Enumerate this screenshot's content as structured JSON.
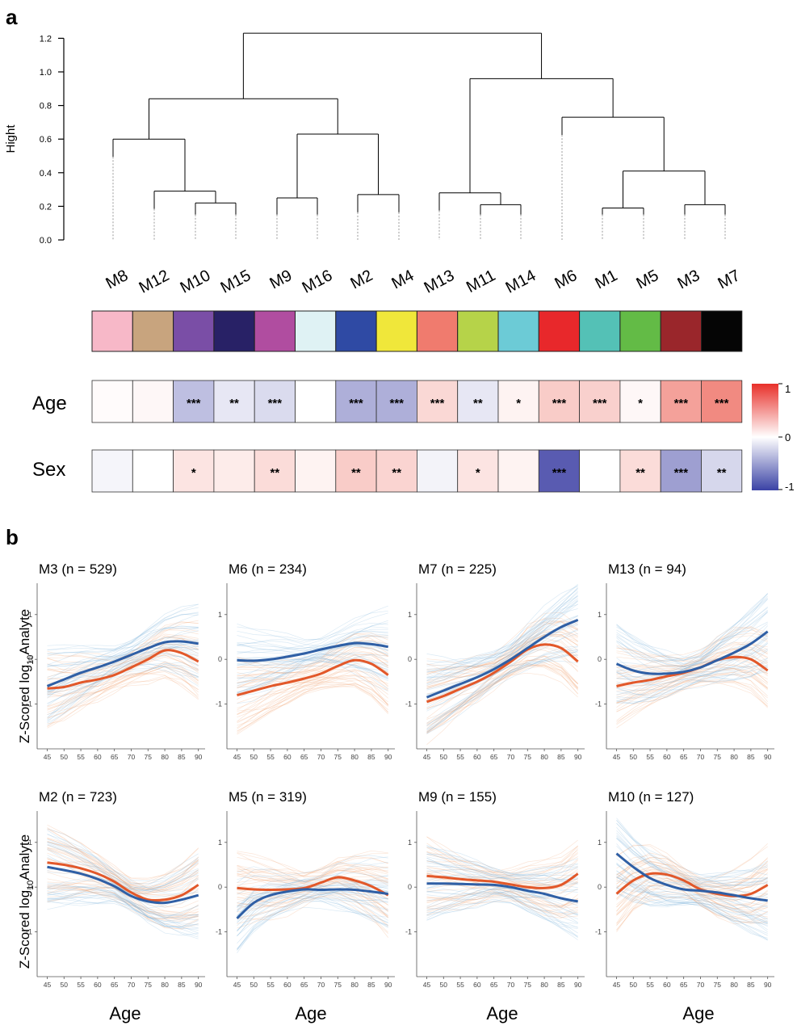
{
  "panel_a": {
    "label": "a",
    "dendrogram_ylabel": "Hight",
    "yticks": [
      "1.2",
      "1.0",
      "0.8",
      "0.6",
      "0.4",
      "0.2",
      "0.0"
    ],
    "modules": [
      "M8",
      "M12",
      "M10",
      "M15",
      "M9",
      "M16",
      "M2",
      "M4",
      "M13",
      "M11",
      "M14",
      "M6",
      "M1",
      "M5",
      "M3",
      "M7"
    ],
    "module_colors": [
      "#f7b8c8",
      "#c8a47e",
      "#7a4ea6",
      "#282166",
      "#b04da0",
      "#dff2f4",
      "#2f4aa4",
      "#f0e73a",
      "#f07b6e",
      "#b6d349",
      "#6ccbd6",
      "#e8282b",
      "#54c1b6",
      "#63bb46",
      "#9a262b",
      "#050505"
    ],
    "row_labels": [
      "Age",
      "Sex"
    ],
    "age_values": [
      0.02,
      0.04,
      -0.32,
      -0.12,
      -0.18,
      0.0,
      -0.4,
      -0.4,
      0.2,
      -0.12,
      0.06,
      0.26,
      0.24,
      0.04,
      0.48,
      0.6
    ],
    "age_stars": [
      "",
      "",
      "***",
      "**",
      "***",
      "",
      "***",
      "***",
      "***",
      "**",
      "*",
      "***",
      "***",
      "*",
      "***",
      "***"
    ],
    "sex_values": [
      -0.05,
      0.0,
      0.14,
      0.1,
      0.18,
      0.06,
      0.26,
      0.22,
      -0.06,
      0.14,
      0.06,
      -0.82,
      0.0,
      0.18,
      -0.48,
      -0.2
    ],
    "sex_stars": [
      "",
      "",
      "*",
      "",
      "**",
      "",
      "**",
      "**",
      "",
      "*",
      "",
      "***",
      "",
      "**",
      "***",
      "**"
    ],
    "scale_ticks": [
      "1",
      "0",
      "-1"
    ]
  },
  "panel_b": {
    "label": "b",
    "ylabel_prefix": "Z-Scored log",
    "ylabel_sub": "10",
    "ylabel_suffix": "Analyte",
    "xlabel": "Age",
    "xticks": [
      "45",
      "50",
      "55",
      "60",
      "65",
      "70",
      "75",
      "80",
      "85",
      "90"
    ]
  },
  "colors": {
    "female": "#e2582a",
    "male": "#2f5fa5",
    "female_light": "#f2a070",
    "male_light": "#7fb4dc"
  },
  "chart_data": [
    {
      "type": "line",
      "title": "M3 (n = 529)",
      "x": [
        45,
        50,
        55,
        60,
        65,
        70,
        75,
        80,
        85,
        90
      ],
      "series": [
        {
          "values": [
            -0.65,
            -0.62,
            -0.52,
            -0.45,
            -0.35,
            -0.18,
            0.0,
            0.2,
            0.14,
            -0.05
          ]
        },
        {
          "values": [
            -0.6,
            -0.45,
            -0.3,
            -0.18,
            -0.05,
            0.1,
            0.25,
            0.38,
            0.4,
            0.35
          ]
        }
      ],
      "yticks": [
        1,
        0,
        -1
      ],
      "ylim": [
        -2,
        1.7
      ]
    },
    {
      "type": "line",
      "title": "M6 (n = 234)",
      "x": [
        45,
        50,
        55,
        60,
        65,
        70,
        75,
        80,
        85,
        90
      ],
      "series": [
        {
          "values": [
            -0.8,
            -0.7,
            -0.6,
            -0.52,
            -0.43,
            -0.32,
            -0.15,
            -0.02,
            -0.1,
            -0.35
          ]
        },
        {
          "values": [
            -0.02,
            -0.03,
            0.0,
            0.06,
            0.13,
            0.22,
            0.3,
            0.36,
            0.34,
            0.28
          ]
        }
      ],
      "yticks": [
        1,
        0,
        -1
      ],
      "ylim": [
        -2,
        1.7
      ]
    },
    {
      "type": "line",
      "title": "M7 (n = 225)",
      "x": [
        45,
        50,
        55,
        60,
        65,
        70,
        75,
        80,
        85,
        90
      ],
      "series": [
        {
          "values": [
            -0.95,
            -0.82,
            -0.66,
            -0.5,
            -0.3,
            -0.05,
            0.22,
            0.33,
            0.25,
            -0.05
          ]
        },
        {
          "values": [
            -0.85,
            -0.7,
            -0.55,
            -0.4,
            -0.22,
            0.0,
            0.25,
            0.5,
            0.72,
            0.88
          ]
        }
      ],
      "yticks": [
        1,
        0,
        -1
      ],
      "ylim": [
        -2,
        1.7
      ]
    },
    {
      "type": "line",
      "title": "M13 (n = 94)",
      "x": [
        45,
        50,
        55,
        60,
        65,
        70,
        75,
        80,
        85,
        90
      ],
      "series": [
        {
          "values": [
            -0.6,
            -0.52,
            -0.46,
            -0.38,
            -0.3,
            -0.18,
            -0.02,
            0.05,
            0.0,
            -0.25
          ]
        },
        {
          "values": [
            -0.1,
            -0.25,
            -0.32,
            -0.32,
            -0.28,
            -0.18,
            -0.02,
            0.15,
            0.35,
            0.62
          ]
        }
      ],
      "yticks": [
        1,
        0,
        -1
      ],
      "ylim": [
        -2,
        1.7
      ]
    },
    {
      "type": "line",
      "title": "M2 (n = 723)",
      "x": [
        45,
        50,
        55,
        60,
        65,
        70,
        75,
        80,
        85,
        90
      ],
      "series": [
        {
          "values": [
            0.55,
            0.5,
            0.42,
            0.3,
            0.12,
            -0.12,
            -0.28,
            -0.28,
            -0.18,
            0.05
          ]
        },
        {
          "values": [
            0.45,
            0.38,
            0.3,
            0.18,
            0.02,
            -0.2,
            -0.32,
            -0.35,
            -0.28,
            -0.18
          ]
        }
      ],
      "yticks": [
        1,
        0,
        -1
      ],
      "ylim": [
        -2,
        1.7
      ]
    },
    {
      "type": "line",
      "title": "M5 (n = 319)",
      "x": [
        45,
        50,
        55,
        60,
        65,
        70,
        75,
        80,
        85,
        90
      ],
      "series": [
        {
          "values": [
            -0.02,
            -0.05,
            -0.06,
            -0.05,
            -0.02,
            0.1,
            0.22,
            0.15,
            0.02,
            -0.18
          ]
        },
        {
          "values": [
            -0.7,
            -0.35,
            -0.18,
            -0.1,
            -0.05,
            -0.06,
            -0.05,
            -0.06,
            -0.1,
            -0.15
          ]
        }
      ],
      "yticks": [
        1,
        0,
        -1
      ],
      "ylim": [
        -2,
        1.7
      ]
    },
    {
      "type": "line",
      "title": "M9 (n = 155)",
      "x": [
        45,
        50,
        55,
        60,
        65,
        70,
        75,
        80,
        85,
        90
      ],
      "series": [
        {
          "values": [
            0.25,
            0.22,
            0.18,
            0.15,
            0.12,
            0.06,
            0.0,
            -0.02,
            0.05,
            0.3
          ]
        },
        {
          "values": [
            0.08,
            0.08,
            0.07,
            0.06,
            0.05,
            0.0,
            -0.08,
            -0.15,
            -0.25,
            -0.32
          ]
        }
      ],
      "yticks": [
        1,
        0,
        -1
      ],
      "ylim": [
        -2,
        1.7
      ]
    },
    {
      "type": "line",
      "title": "M10 (n = 127)",
      "x": [
        45,
        50,
        55,
        60,
        65,
        70,
        75,
        80,
        85,
        90
      ],
      "series": [
        {
          "values": [
            -0.15,
            0.15,
            0.3,
            0.28,
            0.15,
            -0.05,
            -0.15,
            -0.2,
            -0.15,
            0.05
          ]
        },
        {
          "values": [
            0.75,
            0.45,
            0.2,
            0.05,
            -0.05,
            -0.08,
            -0.12,
            -0.18,
            -0.25,
            -0.3
          ]
        }
      ],
      "yticks": [
        1,
        0,
        -1
      ],
      "ylim": [
        -2,
        1.7
      ]
    }
  ]
}
